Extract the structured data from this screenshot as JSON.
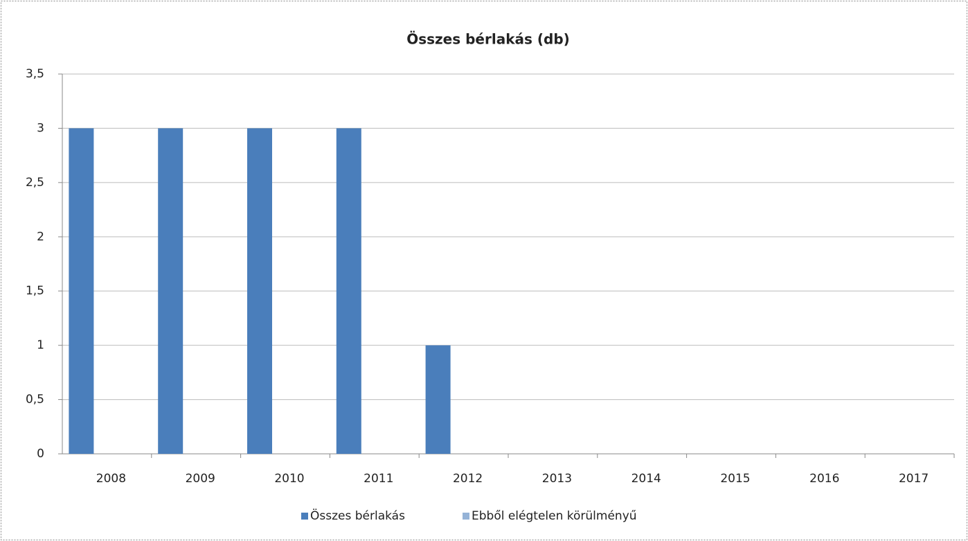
{
  "chart_data": {
    "type": "bar",
    "title": "Összes bérlakás (db)",
    "categories": [
      "2008",
      "2009",
      "2010",
      "2011",
      "2012",
      "2013",
      "2014",
      "2015",
      "2016",
      "2017"
    ],
    "series": [
      {
        "name": "Összes bérlakás",
        "color": "#4a7ebb",
        "values": [
          3,
          3,
          3,
          3,
          1,
          0,
          0,
          0,
          0,
          0
        ]
      },
      {
        "name": "Ebből elégtelen körülményű",
        "color": "#95b3d7",
        "values": [
          0,
          0,
          0,
          0,
          0,
          0,
          0,
          0,
          0,
          0
        ]
      }
    ],
    "ylim": [
      0,
      3.5
    ],
    "yticks": [
      0,
      {
        "value": 0.5,
        "label": "0,5"
      },
      1,
      {
        "value": 1.5,
        "label": "1,5"
      },
      2,
      {
        "value": 2.5,
        "label": "2,5"
      },
      3,
      {
        "value": 3.5,
        "label": "3,5"
      }
    ],
    "grid": true,
    "legend": "bottom"
  }
}
